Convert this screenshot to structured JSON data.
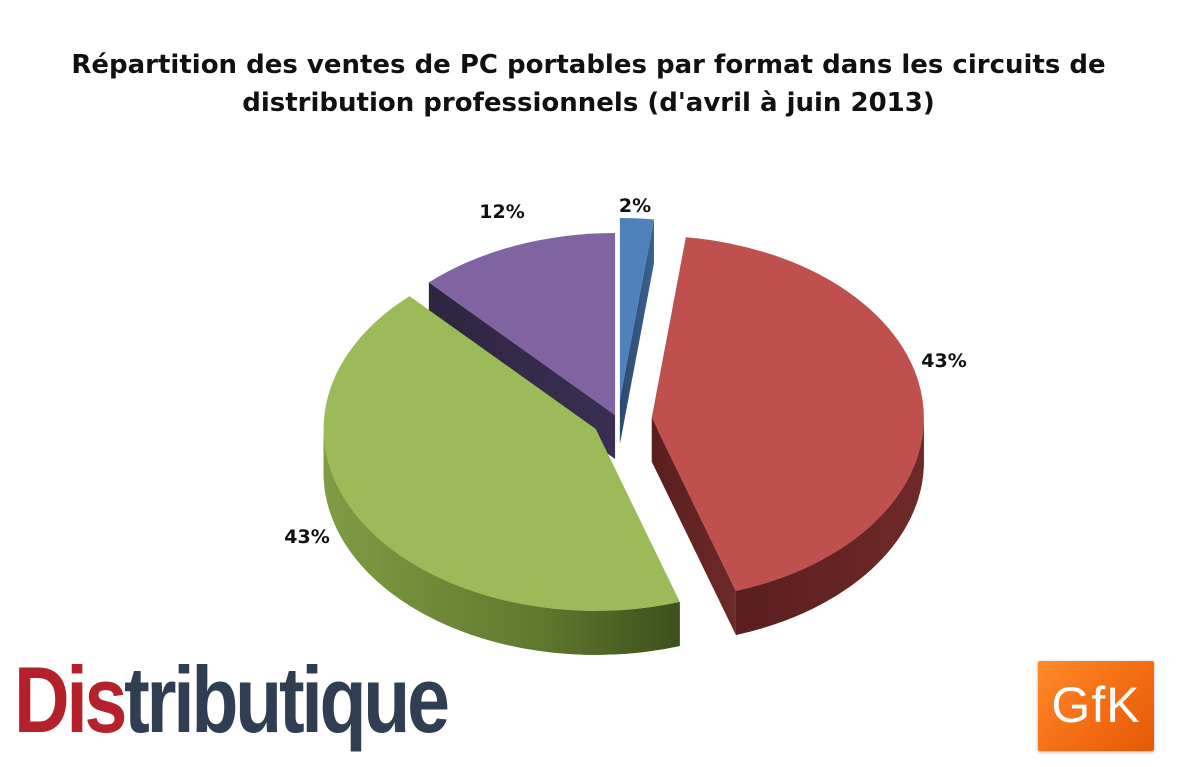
{
  "chart_data": {
    "type": "pie",
    "title_lines": [
      "Répartition des ventes de PC portables par format dans  les circuits de",
      "distribution professionnels (d'avril à juin 2013)"
    ],
    "values": [
      2,
      43,
      43,
      12
    ],
    "labels": [
      "2%",
      "43%",
      "43%",
      "12%"
    ],
    "colors": [
      "#4f81bd",
      "#c0504d",
      "#9bbb59",
      "#8064a2"
    ],
    "style": "3d-exploded",
    "legend": "none"
  },
  "logos": {
    "distributique_part1": "Dis",
    "distributique_part2": "tributique",
    "gfk": "GfK"
  }
}
